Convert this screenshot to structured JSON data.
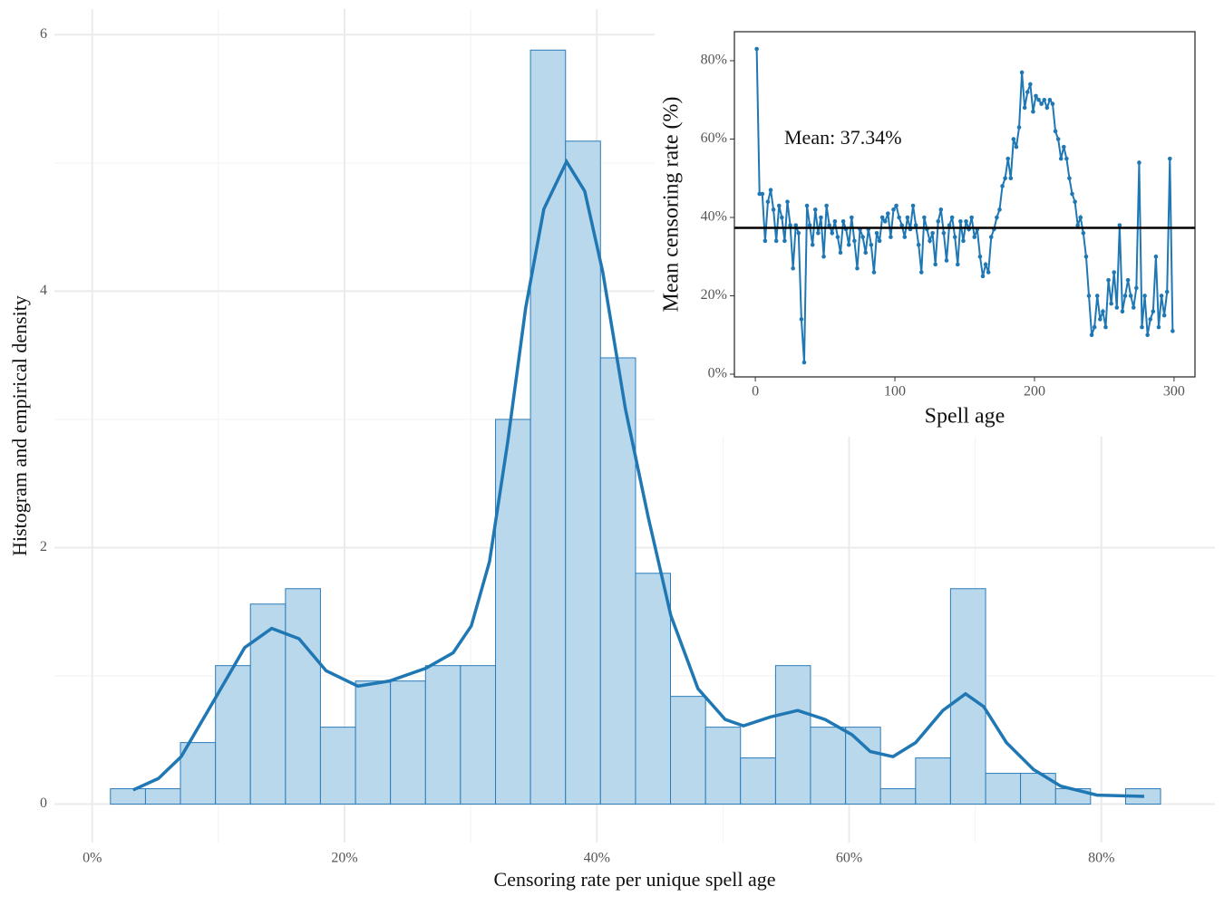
{
  "chart_data": [
    {
      "type": "histogram",
      "xlabel": "Censoring rate per unique spell age",
      "ylabel": "Histogram and empirical density",
      "bins": [
        1.44,
        4.22,
        6.99,
        9.77,
        12.54,
        15.32,
        18.09,
        20.87,
        23.64,
        26.42,
        29.19,
        31.97,
        34.74,
        37.52,
        40.29,
        43.07,
        45.84,
        48.62,
        51.39,
        54.17,
        56.94,
        59.72,
        62.49,
        65.27,
        68.04,
        70.82,
        73.59,
        76.37,
        79.14,
        81.92,
        84.69
      ],
      "values": [
        0.12,
        0.12,
        0.48,
        1.08,
        1.56,
        1.68,
        0.6,
        0.96,
        0.96,
        1.08,
        1.08,
        3.0,
        5.88,
        5.17,
        3.48,
        1.8,
        0.84,
        0.6,
        0.36,
        1.08,
        0.6,
        0.6,
        0.12,
        0.36,
        1.68,
        0.24,
        0.24,
        0.12,
        0,
        0.12
      ],
      "color": "#b9d8eb",
      "edgecolor": "#2b7bba",
      "density": {
        "color": "#1f77b4",
        "x": [
          3.24,
          5.25,
          7.05,
          9.78,
          12.08,
          14.23,
          16.39,
          18.54,
          21.06,
          23.57,
          26.46,
          28.61,
          30.05,
          31.49,
          32.93,
          34.36,
          35.8,
          37.6,
          39.04,
          40.47,
          42.27,
          44.07,
          45.87,
          48.02,
          50.18,
          51.62,
          53.77,
          55.93,
          58.09,
          60.24,
          61.68,
          63.48,
          65.28,
          67.43,
          69.23,
          70.67,
          72.47,
          74.62,
          76.78,
          79.65,
          83.39
        ],
        "values": [
          0.11,
          0.2,
          0.37,
          0.83,
          1.22,
          1.37,
          1.29,
          1.04,
          0.92,
          0.96,
          1.06,
          1.18,
          1.39,
          1.89,
          2.82,
          3.87,
          4.64,
          5.01,
          4.78,
          4.15,
          3.08,
          2.24,
          1.47,
          0.9,
          0.66,
          0.61,
          0.68,
          0.73,
          0.66,
          0.54,
          0.41,
          0.37,
          0.48,
          0.73,
          0.86,
          0.76,
          0.48,
          0.27,
          0.14,
          0.07,
          0.06
        ]
      },
      "xlim": [
        -3,
        89
      ],
      "ylim": [
        -0.3,
        6.2
      ],
      "xticks": [
        {
          "value": 0,
          "label": "0%"
        },
        {
          "value": 20,
          "label": "20%"
        },
        {
          "value": 40,
          "label": "40%"
        },
        {
          "value": 60,
          "label": "60%"
        },
        {
          "value": 80,
          "label": "80%"
        }
      ],
      "yticks": [
        0,
        2,
        4,
        6
      ],
      "xminor": [
        10,
        30,
        50,
        70
      ],
      "yminor": [
        1,
        3,
        5
      ],
      "grid": true
    },
    {
      "type": "line",
      "xlabel": "Spell age",
      "ylabel": "Mean censoring rate (%)",
      "x": [
        1,
        3,
        5,
        7,
        9,
        11,
        13,
        15,
        17,
        19,
        21,
        23,
        25,
        27,
        29,
        31,
        33,
        35,
        37,
        39,
        41,
        43,
        45,
        47,
        49,
        51,
        53,
        55,
        57,
        59,
        61,
        63,
        65,
        67,
        69,
        71,
        73,
        75,
        77,
        79,
        81,
        83,
        85,
        87,
        89,
        91,
        93,
        95,
        97,
        99,
        101,
        103,
        105,
        107,
        109,
        111,
        113,
        115,
        117,
        119,
        121,
        123,
        125,
        127,
        129,
        131,
        133,
        135,
        137,
        139,
        141,
        143,
        145,
        147,
        149,
        151,
        153,
        155,
        157,
        159,
        161,
        163,
        165,
        167,
        169,
        171,
        173,
        175,
        177,
        179,
        181,
        183,
        185,
        187,
        189,
        191,
        193,
        195,
        197,
        199,
        201,
        203,
        205,
        207,
        209,
        211,
        213,
        215,
        217,
        219,
        221,
        223,
        225,
        227,
        229,
        231,
        233,
        235,
        237,
        239,
        241,
        243,
        245,
        247,
        249,
        251,
        253,
        255,
        257,
        259,
        261,
        263,
        265,
        267,
        269,
        271,
        273,
        275,
        277,
        279,
        281,
        283,
        285,
        287,
        289,
        291,
        293,
        295,
        297,
        299
      ],
      "values": [
        83,
        46,
        46,
        34,
        44,
        47,
        42,
        34,
        43,
        40,
        34,
        44,
        38,
        27,
        38,
        36,
        14,
        3,
        43,
        38,
        33,
        42,
        36,
        40,
        30,
        43,
        38,
        36,
        39,
        35,
        31,
        39,
        37,
        33,
        40,
        34,
        27,
        37,
        35,
        31,
        37,
        33,
        26,
        36,
        34,
        40,
        39,
        41,
        35,
        42,
        43,
        40,
        38,
        35,
        40,
        37,
        43,
        38,
        33,
        26,
        40,
        37,
        34,
        36,
        28,
        39,
        42,
        36,
        29,
        38,
        40,
        35,
        28,
        39,
        34,
        39,
        37,
        40,
        35,
        37,
        30,
        25,
        28,
        26,
        35,
        37,
        40,
        42,
        48,
        50,
        55,
        50,
        60,
        58,
        63,
        77,
        68,
        72,
        74,
        67,
        71,
        70,
        69,
        70,
        68,
        70,
        69,
        62,
        60,
        55,
        58,
        55,
        50,
        46,
        44,
        38,
        40,
        36,
        30,
        20,
        10,
        12,
        20,
        14,
        16,
        12,
        24,
        18,
        26,
        17,
        38,
        16,
        20,
        24,
        20,
        17,
        22,
        54,
        12,
        20,
        10,
        14,
        16,
        30,
        12,
        20,
        15,
        21,
        55,
        11
      ],
      "color": "#1f77b4",
      "hline": {
        "value": 37.34,
        "label": "Mean: 37.34%"
      },
      "xlim": [
        -15,
        315
      ],
      "ylim": [
        -0.7,
        87.4
      ],
      "xticks": [
        0,
        100,
        200,
        300
      ],
      "yticks": [
        {
          "value": 0,
          "label": "0%"
        },
        {
          "value": 20,
          "label": "20%"
        },
        {
          "value": 40,
          "label": "40%"
        },
        {
          "value": 60,
          "label": "60%"
        },
        {
          "value": 80,
          "label": "80%"
        }
      ],
      "grid": false
    }
  ]
}
